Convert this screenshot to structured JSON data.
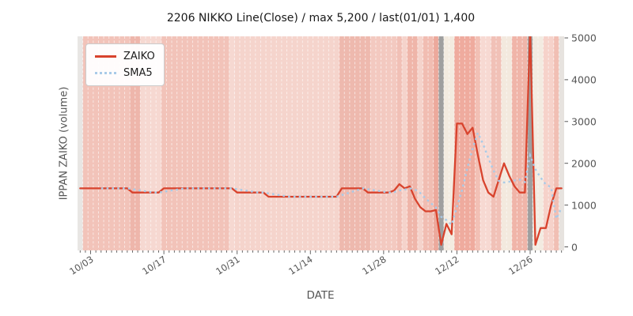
{
  "title": "2206 NIKKO Line(Close) / max 5,200 / last(01/01) 1,400",
  "xlabel": "DATE",
  "ylabel": "IPPAN ZAIKO (volume)",
  "legend": {
    "zaiko_label": "ZAIKO",
    "sma5_label": "SMA5"
  },
  "colors": {
    "zaiko_line": "#d8432d",
    "sma5_line": "#a9cbe8",
    "tick": "#555555",
    "title_text": "#1a1a1a",
    "day_gridline": "rgba(255,255,255,0.6)",
    "event_band": "#9f9f9f"
  },
  "chart_data": {
    "type": "line",
    "title": "2206 NIKKO Line(Close) / max 5,200 / last(01/01) 1,400",
    "xlabel": "DATE",
    "ylabel": "IPPAN ZAIKO (volume)",
    "ylim": [
      0,
      5000
    ],
    "y_ticks": [
      0,
      1000,
      2000,
      3000,
      4000,
      5000
    ],
    "grid": false,
    "legend_position": "upper left",
    "x": [
      "10/01",
      "10/02",
      "10/03",
      "10/04",
      "10/05",
      "10/06",
      "10/07",
      "10/08",
      "10/09",
      "10/10",
      "10/11",
      "10/12",
      "10/13",
      "10/14",
      "10/15",
      "10/16",
      "10/17",
      "10/18",
      "10/19",
      "10/20",
      "10/21",
      "10/22",
      "10/23",
      "10/24",
      "10/25",
      "10/26",
      "10/27",
      "10/28",
      "10/29",
      "10/30",
      "10/31",
      "11/01",
      "11/02",
      "11/03",
      "11/04",
      "11/05",
      "11/06",
      "11/07",
      "11/08",
      "11/09",
      "11/10",
      "11/11",
      "11/12",
      "11/13",
      "11/14",
      "11/15",
      "11/16",
      "11/17",
      "11/18",
      "11/19",
      "11/20",
      "11/21",
      "11/22",
      "11/23",
      "11/24",
      "11/25",
      "11/26",
      "11/27",
      "11/28",
      "11/29",
      "11/30",
      "12/01",
      "12/02",
      "12/03",
      "12/04",
      "12/05",
      "12/06",
      "12/07",
      "12/08",
      "12/09",
      "12/10",
      "12/11",
      "12/12",
      "12/13",
      "12/14",
      "12/15",
      "12/16",
      "12/17",
      "12/18",
      "12/19",
      "12/20",
      "12/21",
      "12/22",
      "12/23",
      "12/24",
      "12/25",
      "12/26",
      "12/27",
      "12/28",
      "12/29",
      "12/30",
      "12/31",
      "01/01"
    ],
    "x_major_ticks": [
      {
        "day_index": 2,
        "label": "10/03"
      },
      {
        "day_index": 16,
        "label": "10/17"
      },
      {
        "day_index": 30,
        "label": "10/31"
      },
      {
        "day_index": 44,
        "label": "11/14"
      },
      {
        "day_index": 58,
        "label": "11/28"
      },
      {
        "day_index": 72,
        "label": "12/12"
      },
      {
        "day_index": 86,
        "label": "12/26"
      }
    ],
    "series": [
      {
        "name": "ZAIKO",
        "style": "solid",
        "color": "#d8432d",
        "values": [
          1400,
          1400,
          1400,
          1400,
          1400,
          1400,
          1400,
          1400,
          1400,
          1400,
          1300,
          1300,
          1300,
          1300,
          1300,
          1300,
          1400,
          1400,
          1400,
          1400,
          1400,
          1400,
          1400,
          1400,
          1400,
          1400,
          1400,
          1400,
          1400,
          1400,
          1300,
          1300,
          1300,
          1300,
          1300,
          1300,
          1200,
          1200,
          1200,
          1200,
          1200,
          1200,
          1200,
          1200,
          1200,
          1200,
          1200,
          1200,
          1200,
          1200,
          1400,
          1400,
          1400,
          1400,
          1400,
          1300,
          1300,
          1300,
          1300,
          1300,
          1350,
          1500,
          1400,
          1450,
          1150,
          950,
          850,
          850,
          880,
          50,
          550,
          300,
          2950,
          2950,
          2700,
          2850,
          2200,
          1600,
          1300,
          1200,
          1600,
          2000,
          1700,
          1450,
          1300,
          1300,
          5200,
          50,
          450,
          450,
          1000,
          1400,
          1400
        ]
      },
      {
        "name": "SMA5",
        "style": "dotted",
        "color": "#a9cbe8",
        "values": [
          null,
          null,
          null,
          null,
          1400,
          1400,
          1400,
          1400,
          1400,
          1400,
          1380,
          1360,
          1340,
          1320,
          1300,
          1300,
          1320,
          1340,
          1360,
          1380,
          1400,
          1400,
          1400,
          1400,
          1400,
          1400,
          1400,
          1400,
          1400,
          1400,
          1380,
          1360,
          1340,
          1320,
          1300,
          1300,
          1280,
          1260,
          1240,
          1220,
          1200,
          1200,
          1200,
          1200,
          1200,
          1200,
          1200,
          1200,
          1200,
          1200,
          1240,
          1280,
          1320,
          1360,
          1400,
          1380,
          1360,
          1340,
          1320,
          1300,
          1310,
          1350,
          1370,
          1400,
          1370,
          1290,
          1160,
          1050,
          940,
          720,
          640,
          530,
          950,
          1360,
          1890,
          2350,
          2730,
          2460,
          2130,
          1830,
          1580,
          1540,
          1560,
          1590,
          1610,
          1550,
          2190,
          1860,
          1660,
          1490,
          1430,
          670,
          940
        ]
      }
    ],
    "annotations": {
      "peak_value": 5200,
      "peak_date": "12/26",
      "last_value": 1400,
      "last_date": "01/01",
      "event_band_dates": [
        "12/09",
        "12/26"
      ]
    },
    "background_bands": [
      {
        "from": 0,
        "to": 1,
        "color": "#e8e6e4"
      },
      {
        "from": 1,
        "to": 10,
        "color": "#f2c3b9"
      },
      {
        "from": 10,
        "to": 12,
        "color": "#eeb6ab"
      },
      {
        "from": 12,
        "to": 16,
        "color": "#f6d8d1"
      },
      {
        "from": 16,
        "to": 29,
        "color": "#f2c3b9"
      },
      {
        "from": 29,
        "to": 30,
        "color": "#f6d8d1"
      },
      {
        "from": 30,
        "to": 50,
        "color": "#f5d4cc"
      },
      {
        "from": 50,
        "to": 56,
        "color": "#eeb9ae"
      },
      {
        "from": 56,
        "to": 61,
        "color": "#f3c9c0"
      },
      {
        "from": 61,
        "to": 62,
        "color": "#f1c0b6"
      },
      {
        "from": 62,
        "to": 63,
        "color": "#f5d3cb"
      },
      {
        "from": 63,
        "to": 65,
        "color": "#efb5a9"
      },
      {
        "from": 65,
        "to": 66,
        "color": "#f5d3cb"
      },
      {
        "from": 66,
        "to": 68,
        "color": "#f1bdb2"
      },
      {
        "from": 68,
        "to": 69,
        "color": "#eca99c"
      },
      {
        "from": 69,
        "to": 70,
        "color": "#9f9f9f"
      },
      {
        "from": 70,
        "to": 72,
        "color": "#f3ebe0"
      },
      {
        "from": 72,
        "to": 76,
        "color": "#efab9e"
      },
      {
        "from": 76,
        "to": 77,
        "color": "#f2c0b5"
      },
      {
        "from": 77,
        "to": 79,
        "color": "#f7d9d2"
      },
      {
        "from": 79,
        "to": 81,
        "color": "#f1c1b7"
      },
      {
        "from": 81,
        "to": 83,
        "color": "#f3e9de"
      },
      {
        "from": 83,
        "to": 86,
        "color": "#f0b5a9"
      },
      {
        "from": 86,
        "to": 87,
        "color": "#9f9f9f"
      },
      {
        "from": 87,
        "to": 89,
        "color": "#f3ebe1"
      },
      {
        "from": 89,
        "to": 91,
        "color": "#f6d2ca"
      },
      {
        "from": 91,
        "to": 92,
        "color": "#f1bfb4"
      },
      {
        "from": 92,
        "to": 93,
        "color": "#e7e3df"
      }
    ]
  }
}
